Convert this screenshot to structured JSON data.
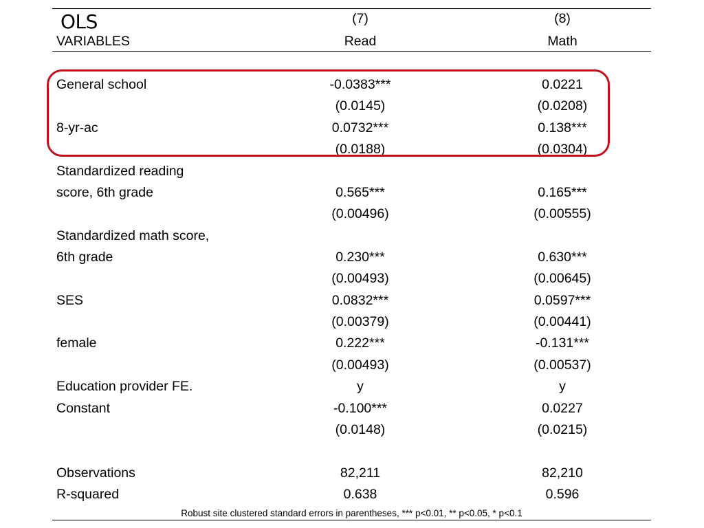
{
  "title": "OLS",
  "header": {
    "col7_number": "(7)",
    "col8_number": "(8)",
    "variables_label": "VARIABLES",
    "col7_name": "Read",
    "col8_name": "Math"
  },
  "rows": {
    "general_school": {
      "label": "General school",
      "col7": "-0.0383***",
      "col8": "0.0221"
    },
    "general_school_se": {
      "col7": "(0.0145)",
      "col8": "(0.0208)"
    },
    "eight_yr_ac": {
      "label": "8-yr-ac",
      "col7": "0.0732***",
      "col8": "0.138***"
    },
    "eight_yr_ac_se": {
      "col7": "(0.0188)",
      "col8": "(0.0304)"
    },
    "std_reading_line1": {
      "label": "Standardized reading"
    },
    "std_reading": {
      "label": "score, 6th grade",
      "col7": "0.565***",
      "col8": "0.165***"
    },
    "std_reading_se": {
      "col7": "(0.00496)",
      "col8": "(0.00555)"
    },
    "std_math_line1": {
      "label": "Standardized math score,"
    },
    "std_math": {
      "label": "6th grade",
      "col7": "0.230***",
      "col8": "0.630***"
    },
    "std_math_se": {
      "col7": "(0.00493)",
      "col8": "(0.00645)"
    },
    "ses": {
      "label": "SES",
      "col7": "0.0832***",
      "col8": "0.0597***"
    },
    "ses_se": {
      "col7": "(0.00379)",
      "col8": "(0.00441)"
    },
    "female": {
      "label": "female",
      "col7": "0.222***",
      "col8": "-0.131***"
    },
    "female_se": {
      "col7": "(0.00493)",
      "col8": "(0.00537)"
    },
    "provider_fe": {
      "label": "Education provider FE.",
      "col7": "y",
      "col8": "y"
    },
    "constant": {
      "label": "Constant",
      "col7": "-0.100***",
      "col8": "0.0227"
    },
    "constant_se": {
      "col7": "(0.0148)",
      "col8": "(0.0215)"
    },
    "observations": {
      "label": "Observations",
      "col7": "82,211",
      "col8": "82,210"
    },
    "r_squared": {
      "label": "R-squared",
      "col7": "0.638",
      "col8": "0.596"
    }
  },
  "footnote": "Robust site clustered standard errors in parentheses, *** p<0.01, ** p<0.05, * p<0.1",
  "highlight_color": "#c0121c"
}
